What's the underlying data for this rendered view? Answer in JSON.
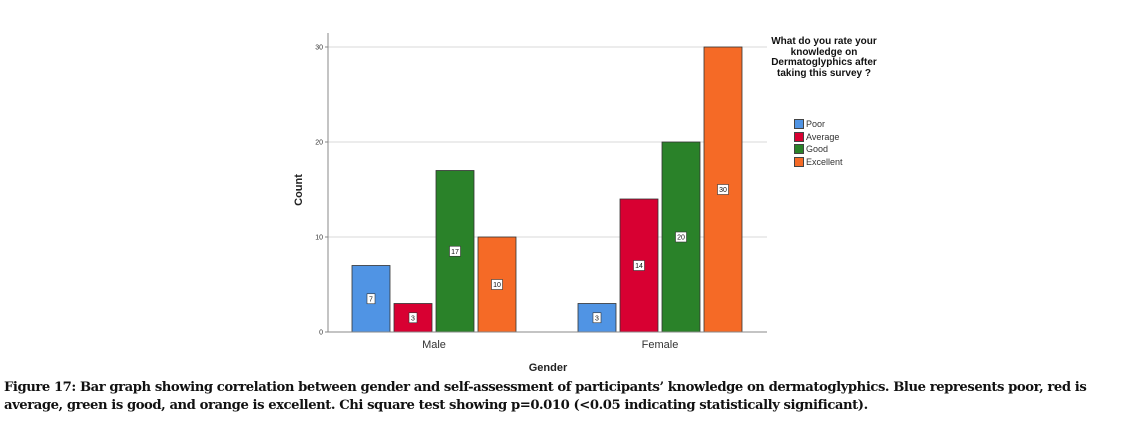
{
  "chart_data": {
    "type": "bar",
    "categories": [
      "Male",
      "Female"
    ],
    "series": [
      {
        "name": "Poor",
        "color": "#5094e4",
        "values": [
          7,
          3
        ]
      },
      {
        "name": "Average",
        "color": "#d80032",
        "values": [
          3,
          14
        ]
      },
      {
        "name": "Good",
        "color": "#2a8229",
        "values": [
          17,
          20
        ]
      },
      {
        "name": "Excellent",
        "color": "#f56a26",
        "values": [
          10,
          30
        ]
      }
    ],
    "xlabel": "Gender",
    "ylabel": "Count",
    "ylim": [
      0,
      31
    ],
    "yticks": [
      0,
      10,
      20,
      30
    ],
    "grid": true,
    "legend_title": "What do you rate your knowledge on Dermatoglyphics after taking this survey ?",
    "legend_placement": "right",
    "data_labels": true
  },
  "caption": "Figure 17: Bar graph showing correlation between gender and self-assessment of participants’ knowledge on dermatoglyphics. Blue represents poor, red is average, green is good, and orange is excellent. Chi square test showing p=0.010 (<0.05 indicating statistically significant)."
}
